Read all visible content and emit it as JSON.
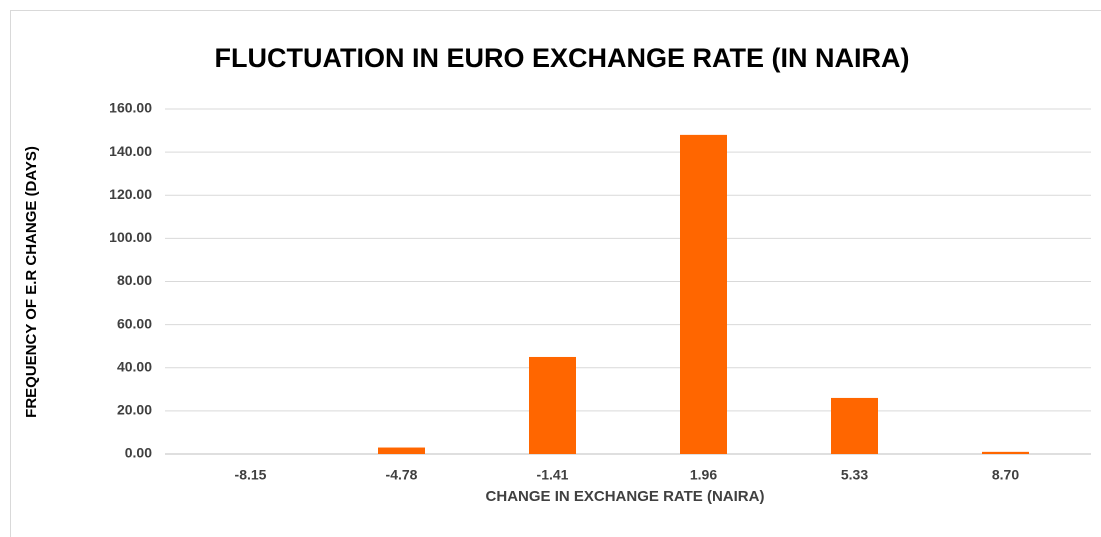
{
  "chart_data": {
    "type": "bar",
    "title": "FLUCTUATION IN EURO EXCHANGE RATE (IN NAIRA)",
    "x_label": "CHANGE IN EXCHANGE RATE (NAIRA)",
    "y_label": "FREQUENCY  OF E.R  CHANGE  (DAYS)",
    "categories": [
      "-8.15",
      "-4.78",
      "-1.41",
      "1.96",
      "5.33",
      "8.70"
    ],
    "values": [
      0,
      3,
      45,
      148,
      26,
      1
    ],
    "color": "#ff6600",
    "ylim": [
      0,
      160
    ],
    "yticks": [
      {
        "value": 0,
        "label": "0.00"
      },
      {
        "value": 20,
        "label": "20.00"
      },
      {
        "value": 40,
        "label": "40.00"
      },
      {
        "value": 60,
        "label": "60.00"
      },
      {
        "value": 80,
        "label": "80.00"
      },
      {
        "value": 100,
        "label": "100.00"
      },
      {
        "value": 120,
        "label": "120.00"
      },
      {
        "value": 140,
        "label": "140.00"
      },
      {
        "value": 160,
        "label": "160.00"
      }
    ],
    "grid": true
  }
}
